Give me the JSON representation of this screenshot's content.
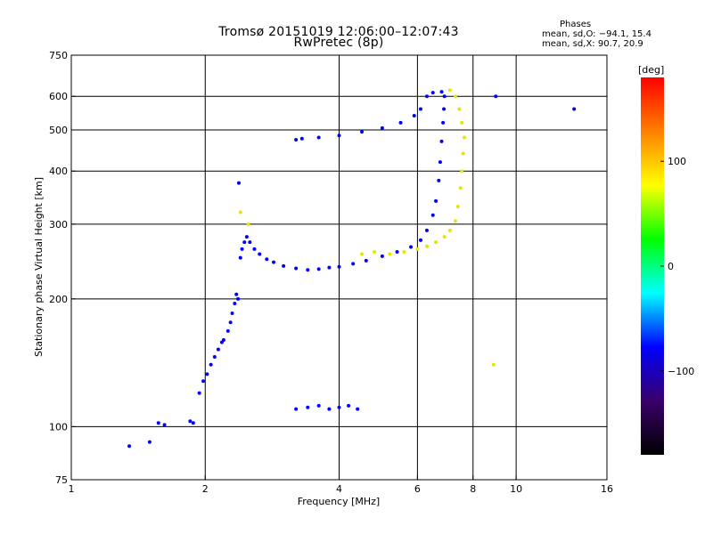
{
  "header": {
    "title": "Tromsø 20151019 12:06:00–12:07:43",
    "subtitle": "RwPretec (8p)"
  },
  "phase_box": {
    "heading": "Phases",
    "line_o": "mean, sd,O: −94.1, 15.4",
    "line_x": "mean, sd,X:  90.7, 20.9"
  },
  "colorbar": {
    "label": "[deg]",
    "ticks": [
      "100",
      "0",
      "−100"
    ],
    "tick_values": [
      100,
      0,
      -100
    ],
    "range": [
      -180,
      180
    ],
    "palette": [
      "#000000",
      "#3a006a",
      "#0000ff",
      "#00ffff",
      "#00ff00",
      "#ffff00",
      "#ff8000",
      "#ff0000"
    ]
  },
  "chart_data": {
    "type": "scatter",
    "title": "Tromsø 20151019 12:06:00–12:07:43",
    "subtitle": "RwPretec (8p)",
    "xlabel": "Frequency [MHz]",
    "ylabel": "Stationary phase Virtual Height [km]",
    "xscale": "log",
    "yscale": "log",
    "xlim": [
      1,
      16
    ],
    "ylim": [
      75,
      750
    ],
    "xticks": [
      1,
      2,
      4,
      6,
      8,
      10,
      16
    ],
    "xtick_labels": [
      "1",
      "2",
      "4",
      "6",
      "8",
      "10",
      "16"
    ],
    "yticks": [
      75,
      100,
      200,
      300,
      400,
      500,
      600,
      750
    ],
    "ytick_labels": [
      "75",
      "100",
      "200",
      "300",
      "400",
      "500",
      "600",
      "750"
    ],
    "xgrid": [
      2,
      4,
      6,
      8,
      10
    ],
    "ygrid": [
      100,
      200,
      300,
      400,
      500,
      600
    ],
    "colors": {
      "o_trace": "#0000ff",
      "x_trace": "#e6e600"
    },
    "series": [
      {
        "mode": "O",
        "phase_mean": -94.1,
        "points": [
          [
            1.35,
            90
          ],
          [
            1.5,
            92
          ],
          [
            1.57,
            102
          ],
          [
            1.62,
            101
          ],
          [
            1.85,
            103
          ],
          [
            1.88,
            102
          ],
          [
            1.94,
            120
          ],
          [
            1.98,
            128
          ],
          [
            2.02,
            133
          ],
          [
            2.06,
            140
          ],
          [
            2.1,
            146
          ],
          [
            2.14,
            152
          ],
          [
            2.18,
            158
          ],
          [
            2.2,
            160
          ],
          [
            2.25,
            168
          ],
          [
            2.28,
            176
          ],
          [
            2.3,
            185
          ],
          [
            2.33,
            195
          ],
          [
            2.35,
            205
          ],
          [
            2.37,
            200
          ],
          [
            2.4,
            250
          ],
          [
            2.42,
            262
          ],
          [
            2.45,
            272
          ],
          [
            2.48,
            280
          ],
          [
            2.52,
            272
          ],
          [
            2.58,
            262
          ],
          [
            2.65,
            255
          ],
          [
            2.75,
            248
          ],
          [
            2.85,
            244
          ],
          [
            3.0,
            239
          ],
          [
            3.2,
            236
          ],
          [
            3.4,
            234
          ],
          [
            3.6,
            235
          ],
          [
            3.8,
            237
          ],
          [
            4.0,
            238
          ],
          [
            4.3,
            242
          ],
          [
            4.6,
            246
          ],
          [
            5.0,
            252
          ],
          [
            5.4,
            258
          ],
          [
            5.8,
            265
          ],
          [
            6.1,
            275
          ],
          [
            6.3,
            290
          ],
          [
            6.5,
            315
          ],
          [
            6.6,
            340
          ],
          [
            6.7,
            380
          ],
          [
            6.75,
            420
          ],
          [
            6.8,
            470
          ],
          [
            6.85,
            520
          ],
          [
            6.88,
            560
          ],
          [
            6.9,
            600
          ],
          [
            6.8,
            615
          ],
          [
            6.5,
            612
          ],
          [
            6.3,
            600
          ],
          [
            6.1,
            560
          ],
          [
            5.9,
            540
          ],
          [
            5.5,
            520
          ],
          [
            5.0,
            505
          ],
          [
            4.5,
            495
          ],
          [
            4.0,
            485
          ],
          [
            3.6,
            480
          ],
          [
            3.3,
            477
          ],
          [
            3.2,
            474
          ],
          [
            3.2,
            110
          ],
          [
            3.4,
            111
          ],
          [
            3.6,
            112
          ],
          [
            3.8,
            110
          ],
          [
            4.0,
            111
          ],
          [
            4.2,
            112
          ],
          [
            4.4,
            110
          ],
          [
            2.38,
            375
          ],
          [
            9.0,
            600
          ],
          [
            13.5,
            560
          ]
        ]
      },
      {
        "mode": "X",
        "phase_mean": 90.7,
        "points": [
          [
            5.2,
            255
          ],
          [
            5.6,
            258
          ],
          [
            6.0,
            262
          ],
          [
            6.3,
            266
          ],
          [
            6.6,
            272
          ],
          [
            6.9,
            280
          ],
          [
            7.1,
            290
          ],
          [
            7.3,
            305
          ],
          [
            7.4,
            330
          ],
          [
            7.5,
            365
          ],
          [
            7.55,
            400
          ],
          [
            7.6,
            440
          ],
          [
            7.65,
            480
          ],
          [
            7.55,
            520
          ],
          [
            7.45,
            560
          ],
          [
            7.3,
            600
          ],
          [
            7.1,
            620
          ],
          [
            4.5,
            255
          ],
          [
            4.8,
            258
          ],
          [
            2.4,
            320
          ],
          [
            2.5,
            300
          ],
          [
            8.9,
            140
          ]
        ]
      }
    ]
  }
}
